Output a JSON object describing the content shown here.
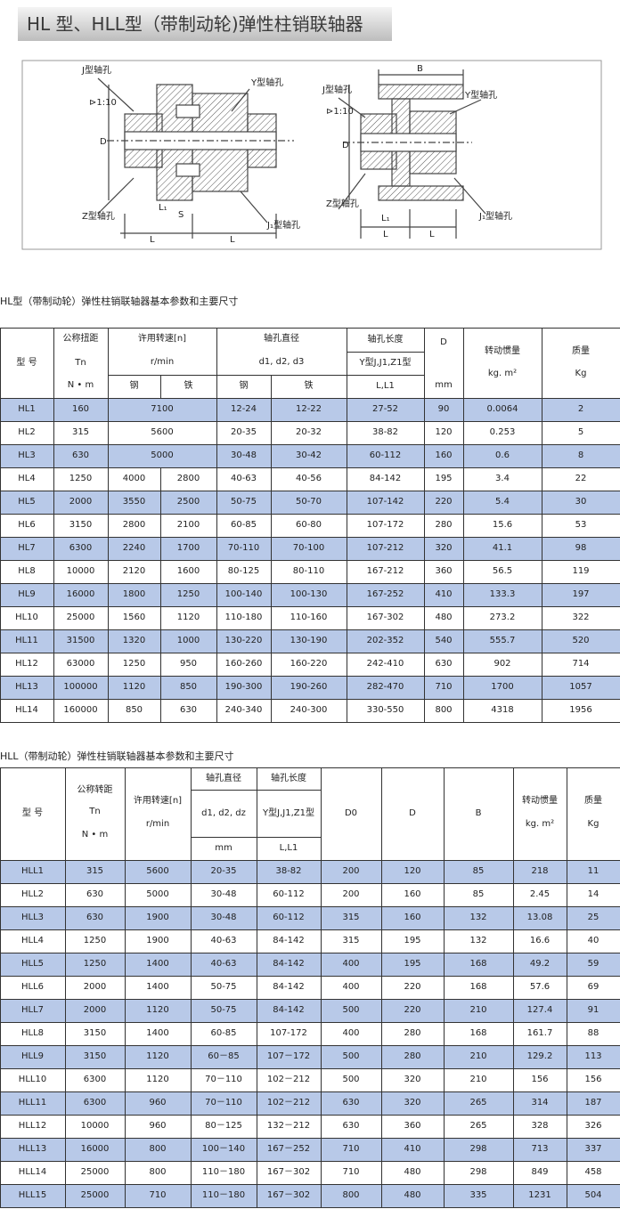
{
  "header": {
    "title": "HL 型、HLL型（带制动轮)弹性柱销联轴器"
  },
  "diagram": {
    "left_labels": [
      "J型轴孔",
      "⊳1:10",
      "Y型轴孔",
      "Z型轴孔",
      "J₁型轴孔",
      "L",
      "S",
      "L₁",
      "L",
      "D"
    ],
    "right_labels": [
      "J型轴孔",
      "⊳1:10",
      "Y型轴孔",
      "B",
      "Z型轴孔",
      "J₁型轴孔",
      "L₁",
      "L",
      "L",
      "D"
    ]
  },
  "table1": {
    "caption": "HL型（带制动轮）弹性柱销联轴器基本参数和主要尺寸",
    "header": [
      "型 号",
      "公称扭距",
      "Tn",
      "N • m",
      "许用转速[n]",
      "r/min",
      "钢",
      "铁",
      "轴孔直径",
      "d1, d2, d3",
      "钢",
      "铁",
      "轴孔长度",
      "Y型J,J1,Z1型",
      "L,L1",
      "D",
      "mm",
      "转动惯量",
      "kg. m²",
      "质量",
      "Kg"
    ],
    "rows": [
      [
        "HL1",
        "160",
        "7100",
        "12-24",
        "12-22",
        "27-52",
        "90",
        "0.0064",
        "2"
      ],
      [
        "HL2",
        "315",
        "5600",
        "20-35",
        "20-32",
        "38-82",
        "120",
        "0.253",
        "5"
      ],
      [
        "HL3",
        "630",
        "5000",
        "30-48",
        "30-42",
        "60-112",
        "160",
        "0.6",
        "8"
      ],
      [
        "HL4",
        "1250",
        "4000",
        "2800",
        "40-63",
        "40-56",
        "84-142",
        "195",
        "3.4",
        "22"
      ],
      [
        "HL5",
        "2000",
        "3550",
        "2500",
        "50-75",
        "50-70",
        "107-142",
        "220",
        "5.4",
        "30"
      ],
      [
        "HL6",
        "3150",
        "2800",
        "2100",
        "60-85",
        "60-80",
        "107-172",
        "280",
        "15.6",
        "53"
      ],
      [
        "HL7",
        "6300",
        "2240",
        "1700",
        "70-110",
        "70-100",
        "107-212",
        "320",
        "41.1",
        "98"
      ],
      [
        "HL8",
        "10000",
        "2120",
        "1600",
        "80-125",
        "80-110",
        "167-212",
        "360",
        "56.5",
        "119"
      ],
      [
        "HL9",
        "16000",
        "1800",
        "1250",
        "100-140",
        "100-130",
        "167-252",
        "410",
        "133.3",
        "197"
      ],
      [
        "HL10",
        "25000",
        "1560",
        "1120",
        "110-180",
        "110-160",
        "167-302",
        "480",
        "273.2",
        "322"
      ],
      [
        "HL11",
        "31500",
        "1320",
        "1000",
        "130-220",
        "130-190",
        "202-352",
        "540",
        "555.7",
        "520"
      ],
      [
        "HL12",
        "63000",
        "1250",
        "950",
        "160-260",
        "160-220",
        "242-410",
        "630",
        "902",
        "714"
      ],
      [
        "HL13",
        "100000",
        "1120",
        "850",
        "190-300",
        "190-260",
        "282-470",
        "710",
        "1700",
        "1057"
      ],
      [
        "HL14",
        "160000",
        "850",
        "630",
        "240-340",
        "240-300",
        "330-550",
        "800",
        "4318",
        "1956"
      ]
    ]
  },
  "table2": {
    "caption": "HLL（带制动轮）弹性柱销联轴器基本参数和主要尺寸",
    "header": [
      "型 号",
      "公称转距",
      "Tn",
      "N • m",
      "许用转速[n]",
      "r/min",
      "轴孔直径",
      "d1, d2, dz",
      "mm",
      "轴孔长度",
      "Y型J,J1,Z1型",
      "L,L1",
      "D0",
      "D",
      "B",
      "转动惯量",
      "kg. m²",
      "质量",
      "Kg"
    ],
    "rows": [
      [
        "HLL1",
        "315",
        "5600",
        "20-35",
        "38-82",
        "200",
        "120",
        "85",
        "218",
        "11"
      ],
      [
        "HLL2",
        "630",
        "5000",
        "30-48",
        "60-112",
        "200",
        "160",
        "85",
        "2.45",
        "14"
      ],
      [
        "HLL3",
        "630",
        "1900",
        "30-48",
        "60-112",
        "315",
        "160",
        "132",
        "13.08",
        "25"
      ],
      [
        "HLL4",
        "1250",
        "1900",
        "40-63",
        "84-142",
        "315",
        "195",
        "132",
        "16.6",
        "40"
      ],
      [
        "HLL5",
        "1250",
        "1400",
        "40-63",
        "84-142",
        "400",
        "195",
        "168",
        "49.2",
        "59"
      ],
      [
        "HLL6",
        "2000",
        "1400",
        "50-75",
        "84-142",
        "400",
        "220",
        "168",
        "57.6",
        "69"
      ],
      [
        "HLL7",
        "2000",
        "1120",
        "50-75",
        "84-142",
        "500",
        "220",
        "210",
        "127.4",
        "91"
      ],
      [
        "HLL8",
        "3150",
        "1400",
        "60-85",
        "107-172",
        "400",
        "280",
        "168",
        "161.7",
        "88"
      ],
      [
        "HLL9",
        "3150",
        "1120",
        "60－85",
        "107－172",
        "500",
        "280",
        "210",
        "129.2",
        "113"
      ],
      [
        "HLL10",
        "6300",
        "1120",
        "70－110",
        "102－212",
        "500",
        "320",
        "210",
        "156",
        "156"
      ],
      [
        "HLL11",
        "6300",
        "960",
        "70－110",
        "102－212",
        "630",
        "320",
        "265",
        "314",
        "187"
      ],
      [
        "HLL12",
        "10000",
        "960",
        "80－125",
        "132－212",
        "630",
        "360",
        "265",
        "328",
        "326"
      ],
      [
        "HLL13",
        "16000",
        "800",
        "100－140",
        "167－252",
        "710",
        "410",
        "298",
        "713",
        "337"
      ],
      [
        "HLL14",
        "25000",
        "800",
        "110－180",
        "167－302",
        "710",
        "480",
        "298",
        "849",
        "458"
      ],
      [
        "HLL15",
        "25000",
        "710",
        "110－180",
        "167－302",
        "800",
        "480",
        "335",
        "1231",
        "504"
      ]
    ]
  }
}
